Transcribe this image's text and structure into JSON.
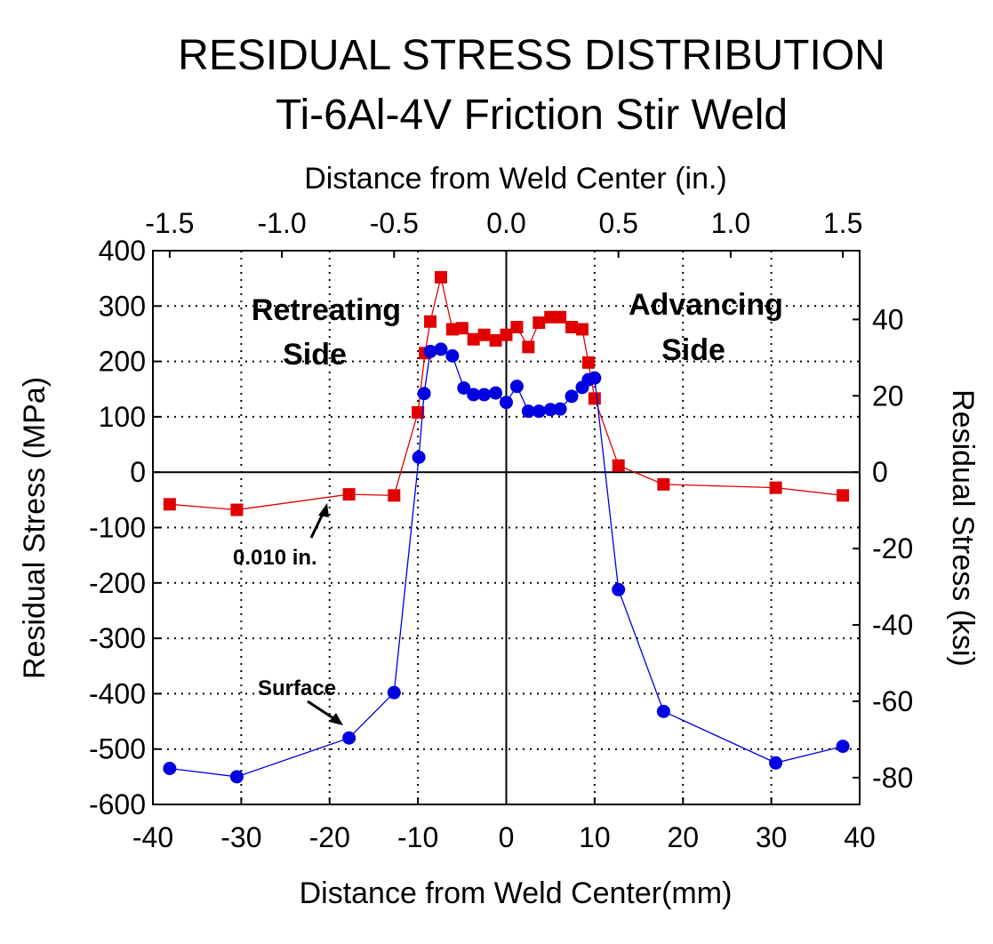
{
  "chart_data": {
    "type": "scatter",
    "title": "RESIDUAL STRESS DISTRIBUTION",
    "subtitle": "Ti-6Al-4V Friction Stir Weld",
    "xlabel": "Distance from Weld Center(mm)",
    "ylabel": "Residual Stress (MPa)",
    "x2label": "Distance from Weld Center (in.)",
    "y2label": "Residual Stress (ksi)",
    "xlim": [
      -40,
      40
    ],
    "ylim": [
      -600,
      400
    ],
    "xticks": [
      "-40",
      "-30",
      "-20",
      "-10",
      "0",
      "10",
      "20",
      "30",
      "40"
    ],
    "yticks": [
      "400",
      "300",
      "200",
      "100",
      "0",
      "-100",
      "-200",
      "-300",
      "-400",
      "-500",
      "-600"
    ],
    "x2ticks": [
      "-1.5",
      "-1.0",
      "-0.5",
      "0.0",
      "0.5",
      "1.0",
      "1.5"
    ],
    "y2ticks": [
      "40",
      "20",
      "0",
      "-20",
      "-40",
      "-60",
      "-80"
    ],
    "grid": true,
    "annotations": {
      "retreating_line1": "Retreating",
      "retreating_line2": "Side",
      "advancing_line1": "Advancing",
      "advancing_line2": "Side",
      "depth_label": "0.010 in.",
      "surface_label": "Surface"
    },
    "series": [
      {
        "name": "0.010 in.",
        "color": "#e00000",
        "line_color": "#e00000",
        "marker": "square",
        "x": [
          -38.1,
          -30.5,
          -17.8,
          -12.7,
          -10.0,
          -9.2,
          -8.6,
          -7.4,
          -6.1,
          -5.0,
          -3.7,
          -2.5,
          -1.2,
          0,
          1.2,
          2.5,
          3.7,
          5.0,
          6.1,
          7.4,
          8.6,
          9.3,
          10.0,
          12.7,
          17.8,
          30.5,
          38.1
        ],
        "y": [
          -58,
          -68,
          -40,
          -42,
          108,
          215,
          272,
          352,
          258,
          260,
          240,
          248,
          238,
          248,
          262,
          226,
          270,
          280,
          280,
          262,
          258,
          198,
          133,
          12,
          -22,
          -28,
          -42
        ]
      },
      {
        "name": "Surface",
        "color": "#0000e0",
        "line_color": "#0000e0",
        "marker": "circle",
        "x": [
          -38.1,
          -30.5,
          -17.8,
          -12.7,
          -9.9,
          -9.3,
          -8.6,
          -7.4,
          -6.1,
          -4.8,
          -3.7,
          -2.5,
          -1.2,
          0,
          1.2,
          2.5,
          3.7,
          5.0,
          6.1,
          7.4,
          8.6,
          9.3,
          10.0,
          12.7,
          17.8,
          30.5,
          38.1
        ],
        "y": [
          -535,
          -550,
          -480,
          -398,
          27,
          142,
          218,
          222,
          210,
          152,
          140,
          140,
          143,
          126,
          155,
          110,
          110,
          113,
          114,
          137,
          153,
          167,
          170,
          -212,
          -432,
          -525,
          -495
        ]
      }
    ]
  }
}
